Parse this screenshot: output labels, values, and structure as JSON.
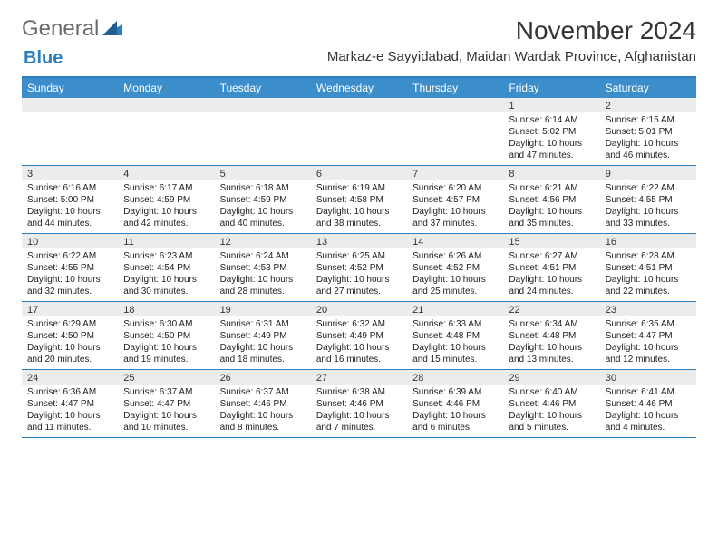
{
  "logo": {
    "text1": "General",
    "text2": "Blue"
  },
  "title": "November 2024",
  "location": "Markaz-e Sayyidabad, Maidan Wardak Province, Afghanistan",
  "colors": {
    "header_bg": "#3c8ecb",
    "border": "#2b7fbf",
    "band": "#ececec",
    "page_bg": "#ffffff",
    "text": "#222222",
    "logo_gray": "#6b6b6b",
    "logo_blue": "#2b7fbf"
  },
  "day_names": [
    "Sunday",
    "Monday",
    "Tuesday",
    "Wednesday",
    "Thursday",
    "Friday",
    "Saturday"
  ],
  "weeks": [
    [
      null,
      null,
      null,
      null,
      null,
      {
        "n": "1",
        "sr": "Sunrise: 6:14 AM",
        "ss": "Sunset: 5:02 PM",
        "dl": "Daylight: 10 hours and 47 minutes."
      },
      {
        "n": "2",
        "sr": "Sunrise: 6:15 AM",
        "ss": "Sunset: 5:01 PM",
        "dl": "Daylight: 10 hours and 46 minutes."
      }
    ],
    [
      {
        "n": "3",
        "sr": "Sunrise: 6:16 AM",
        "ss": "Sunset: 5:00 PM",
        "dl": "Daylight: 10 hours and 44 minutes."
      },
      {
        "n": "4",
        "sr": "Sunrise: 6:17 AM",
        "ss": "Sunset: 4:59 PM",
        "dl": "Daylight: 10 hours and 42 minutes."
      },
      {
        "n": "5",
        "sr": "Sunrise: 6:18 AM",
        "ss": "Sunset: 4:59 PM",
        "dl": "Daylight: 10 hours and 40 minutes."
      },
      {
        "n": "6",
        "sr": "Sunrise: 6:19 AM",
        "ss": "Sunset: 4:58 PM",
        "dl": "Daylight: 10 hours and 38 minutes."
      },
      {
        "n": "7",
        "sr": "Sunrise: 6:20 AM",
        "ss": "Sunset: 4:57 PM",
        "dl": "Daylight: 10 hours and 37 minutes."
      },
      {
        "n": "8",
        "sr": "Sunrise: 6:21 AM",
        "ss": "Sunset: 4:56 PM",
        "dl": "Daylight: 10 hours and 35 minutes."
      },
      {
        "n": "9",
        "sr": "Sunrise: 6:22 AM",
        "ss": "Sunset: 4:55 PM",
        "dl": "Daylight: 10 hours and 33 minutes."
      }
    ],
    [
      {
        "n": "10",
        "sr": "Sunrise: 6:22 AM",
        "ss": "Sunset: 4:55 PM",
        "dl": "Daylight: 10 hours and 32 minutes."
      },
      {
        "n": "11",
        "sr": "Sunrise: 6:23 AM",
        "ss": "Sunset: 4:54 PM",
        "dl": "Daylight: 10 hours and 30 minutes."
      },
      {
        "n": "12",
        "sr": "Sunrise: 6:24 AM",
        "ss": "Sunset: 4:53 PM",
        "dl": "Daylight: 10 hours and 28 minutes."
      },
      {
        "n": "13",
        "sr": "Sunrise: 6:25 AM",
        "ss": "Sunset: 4:52 PM",
        "dl": "Daylight: 10 hours and 27 minutes."
      },
      {
        "n": "14",
        "sr": "Sunrise: 6:26 AM",
        "ss": "Sunset: 4:52 PM",
        "dl": "Daylight: 10 hours and 25 minutes."
      },
      {
        "n": "15",
        "sr": "Sunrise: 6:27 AM",
        "ss": "Sunset: 4:51 PM",
        "dl": "Daylight: 10 hours and 24 minutes."
      },
      {
        "n": "16",
        "sr": "Sunrise: 6:28 AM",
        "ss": "Sunset: 4:51 PM",
        "dl": "Daylight: 10 hours and 22 minutes."
      }
    ],
    [
      {
        "n": "17",
        "sr": "Sunrise: 6:29 AM",
        "ss": "Sunset: 4:50 PM",
        "dl": "Daylight: 10 hours and 20 minutes."
      },
      {
        "n": "18",
        "sr": "Sunrise: 6:30 AM",
        "ss": "Sunset: 4:50 PM",
        "dl": "Daylight: 10 hours and 19 minutes."
      },
      {
        "n": "19",
        "sr": "Sunrise: 6:31 AM",
        "ss": "Sunset: 4:49 PM",
        "dl": "Daylight: 10 hours and 18 minutes."
      },
      {
        "n": "20",
        "sr": "Sunrise: 6:32 AM",
        "ss": "Sunset: 4:49 PM",
        "dl": "Daylight: 10 hours and 16 minutes."
      },
      {
        "n": "21",
        "sr": "Sunrise: 6:33 AM",
        "ss": "Sunset: 4:48 PM",
        "dl": "Daylight: 10 hours and 15 minutes."
      },
      {
        "n": "22",
        "sr": "Sunrise: 6:34 AM",
        "ss": "Sunset: 4:48 PM",
        "dl": "Daylight: 10 hours and 13 minutes."
      },
      {
        "n": "23",
        "sr": "Sunrise: 6:35 AM",
        "ss": "Sunset: 4:47 PM",
        "dl": "Daylight: 10 hours and 12 minutes."
      }
    ],
    [
      {
        "n": "24",
        "sr": "Sunrise: 6:36 AM",
        "ss": "Sunset: 4:47 PM",
        "dl": "Daylight: 10 hours and 11 minutes."
      },
      {
        "n": "25",
        "sr": "Sunrise: 6:37 AM",
        "ss": "Sunset: 4:47 PM",
        "dl": "Daylight: 10 hours and 10 minutes."
      },
      {
        "n": "26",
        "sr": "Sunrise: 6:37 AM",
        "ss": "Sunset: 4:46 PM",
        "dl": "Daylight: 10 hours and 8 minutes."
      },
      {
        "n": "27",
        "sr": "Sunrise: 6:38 AM",
        "ss": "Sunset: 4:46 PM",
        "dl": "Daylight: 10 hours and 7 minutes."
      },
      {
        "n": "28",
        "sr": "Sunrise: 6:39 AM",
        "ss": "Sunset: 4:46 PM",
        "dl": "Daylight: 10 hours and 6 minutes."
      },
      {
        "n": "29",
        "sr": "Sunrise: 6:40 AM",
        "ss": "Sunset: 4:46 PM",
        "dl": "Daylight: 10 hours and 5 minutes."
      },
      {
        "n": "30",
        "sr": "Sunrise: 6:41 AM",
        "ss": "Sunset: 4:46 PM",
        "dl": "Daylight: 10 hours and 4 minutes."
      }
    ]
  ]
}
